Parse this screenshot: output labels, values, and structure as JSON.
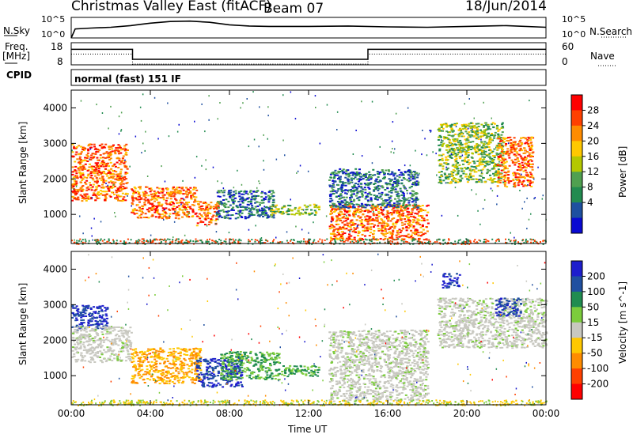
{
  "header": {
    "title": "Christmas Valley East (fitACF)",
    "beam": "Beam 07",
    "date": "18/Jun/2014"
  },
  "panel_labels": {
    "nsky": "N.Sky",
    "nsky_ticks": [
      "10^5",
      "10^0"
    ],
    "nsearch": "N.Search",
    "nsearch_ticks": [
      "10^5",
      "10^0"
    ],
    "freq_label": "Freq.",
    "freq_unit": "[MHz]",
    "freq_ticks": [
      "18",
      "8"
    ],
    "nave": "Nave",
    "nave_ticks": [
      "60",
      "0"
    ],
    "cpid": "CPID",
    "cpid_value": "normal (fast) 151 IF"
  },
  "chart_data": [
    {
      "type": "line",
      "name": "sky-noise",
      "x_hours": [
        0,
        0.2,
        1,
        2,
        3,
        3.5,
        4,
        5,
        6,
        7,
        8,
        9,
        10,
        12,
        14,
        16,
        18,
        20,
        22,
        24
      ],
      "y_log10": [
        0,
        2.2,
        2.4,
        2.6,
        3.0,
        3.3,
        3.6,
        4.0,
        4.1,
        3.8,
        3.2,
        2.9,
        2.8,
        2.8,
        2.9,
        2.7,
        2.6,
        2.8,
        3.0,
        2.6
      ],
      "ylim": [
        0,
        5
      ]
    },
    {
      "type": "line",
      "name": "frequency",
      "x_hours": [
        0,
        3.1,
        3.1,
        15.0,
        15.0,
        24
      ],
      "values": [
        15,
        15,
        10.5,
        10.5,
        15,
        15
      ],
      "ylim": [
        8,
        18
      ],
      "y2lim": [
        0,
        60
      ]
    },
    {
      "type": "heatmap",
      "name": "power",
      "xlabel": "",
      "ylabel": "Slant Range [km]",
      "colorbar_label": "Power [dB]",
      "colorbar_ticks": [
        "28",
        "24",
        "20",
        "16",
        "12",
        "8",
        "4"
      ],
      "colorbar_colors": [
        "#ff0000",
        "#ff4000",
        "#ff8c00",
        "#ffc800",
        "#b4c800",
        "#50a050",
        "#228b50",
        "#1e50a0",
        "#0a0ad2"
      ],
      "ylim": [
        180,
        4500
      ],
      "yticks": [
        "4000",
        "3000",
        "2000",
        "1000"
      ],
      "yticks_values": [
        4000,
        3000,
        2000,
        1000
      ],
      "regions": [
        {
          "t0": 0.0,
          "t1": 2.8,
          "r0": 1400,
          "r1": 3000,
          "level": "strong"
        },
        {
          "t0": 3.0,
          "t1": 6.3,
          "r0": 900,
          "r1": 1800,
          "level": "strong"
        },
        {
          "t0": 6.3,
          "t1": 7.4,
          "r0": 700,
          "r1": 1400,
          "level": "strong"
        },
        {
          "t0": 7.3,
          "t1": 10.2,
          "r0": 900,
          "r1": 1700,
          "level": "weak"
        },
        {
          "t0": 10.0,
          "t1": 12.5,
          "r0": 1000,
          "r1": 1300,
          "level": "mid"
        },
        {
          "t0": 13.0,
          "t1": 18.0,
          "r0": 300,
          "r1": 1300,
          "level": "strong"
        },
        {
          "t0": 13.0,
          "t1": 17.5,
          "r0": 1200,
          "r1": 2300,
          "level": "weak"
        },
        {
          "t0": 18.5,
          "t1": 21.8,
          "r0": 1900,
          "r1": 3600,
          "level": "mid"
        },
        {
          "t0": 21.5,
          "t1": 23.3,
          "r0": 1800,
          "r1": 3200,
          "level": "strong"
        }
      ]
    },
    {
      "type": "heatmap",
      "name": "velocity",
      "xlabel": "Time UT",
      "ylabel": "Slant Range [km]",
      "colorbar_label": "Velocity [m s^-1]",
      "colorbar_ticks": [
        "200",
        "100",
        "50",
        "15",
        "-15",
        "-50",
        "-100",
        "-200"
      ],
      "colorbar_colors": [
        "#1e1ecd",
        "#2050a0",
        "#208c50",
        "#7ccc3c",
        "#c8c8c0",
        "#ffc800",
        "#ff8c00",
        "#ff4000",
        "#ff0000"
      ],
      "ylim": [
        180,
        4500
      ],
      "yticks": [
        "4000",
        "3000",
        "2000",
        "1000"
      ],
      "yticks_values": [
        4000,
        3000,
        2000,
        1000
      ],
      "xticks": [
        "00:00",
        "04:00",
        "08:00",
        "12:00",
        "16:00",
        "20:00",
        "00:00"
      ],
      "xticks_values": [
        0,
        4,
        8,
        12,
        16,
        20,
        24
      ],
      "regions": [
        {
          "t0": 0.0,
          "t1": 1.8,
          "r0": 2300,
          "r1": 3000,
          "class": "high-pos"
        },
        {
          "t0": 0.0,
          "t1": 3.0,
          "r0": 1400,
          "r1": 2400,
          "class": "near-zero"
        },
        {
          "t0": 3.0,
          "t1": 6.5,
          "r0": 800,
          "r1": 1800,
          "class": "neg"
        },
        {
          "t0": 6.3,
          "t1": 8.6,
          "r0": 700,
          "r1": 1500,
          "class": "high-pos"
        },
        {
          "t0": 7.5,
          "t1": 10.5,
          "r0": 900,
          "r1": 1700,
          "class": "pos"
        },
        {
          "t0": 10.5,
          "t1": 12.5,
          "r0": 1000,
          "r1": 1300,
          "class": "pos"
        },
        {
          "t0": 13.0,
          "t1": 18.0,
          "r0": 300,
          "r1": 2300,
          "class": "near-zero"
        },
        {
          "t0": 18.5,
          "t1": 24.0,
          "r0": 1800,
          "r1": 3200,
          "class": "near-zero"
        },
        {
          "t0": 18.7,
          "t1": 19.6,
          "r0": 3500,
          "r1": 3900,
          "class": "high-pos"
        },
        {
          "t0": 21.4,
          "t1": 22.7,
          "r0": 2700,
          "r1": 3200,
          "class": "high-pos"
        }
      ]
    }
  ]
}
